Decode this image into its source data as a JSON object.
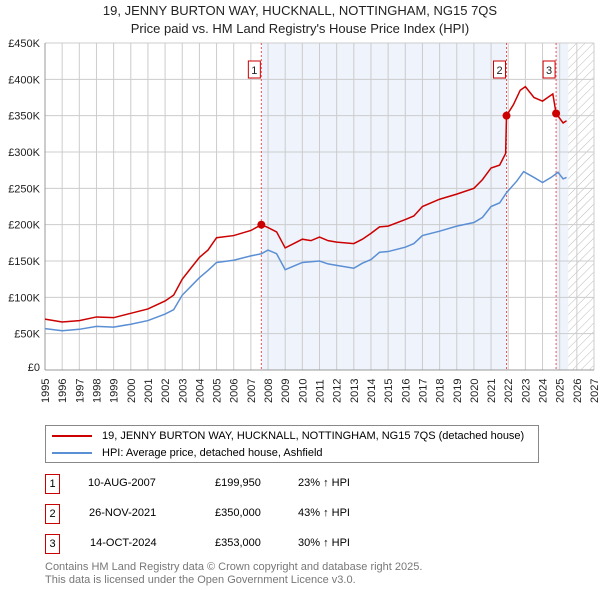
{
  "title": "19, JENNY BURTON WAY, HUCKNALL, NOTTINGHAM, NG15 7QS",
  "subtitle": "Price paid vs. HM Land Registry's House Price Index (HPI)",
  "chart_data": {
    "type": "line",
    "xlim": [
      1995,
      2027
    ],
    "ylim": [
      0,
      450000
    ],
    "yticks": [
      {
        "v": 0,
        "label": "£0"
      },
      {
        "v": 50000,
        "label": "£50K"
      },
      {
        "v": 100000,
        "label": "£100K"
      },
      {
        "v": 150000,
        "label": "£150K"
      },
      {
        "v": 200000,
        "label": "£200K"
      },
      {
        "v": 250000,
        "label": "£250K"
      },
      {
        "v": 300000,
        "label": "£300K"
      },
      {
        "v": 350000,
        "label": "£350K"
      },
      {
        "v": 400000,
        "label": "£400K"
      },
      {
        "v": 450000,
        "label": "£450K"
      }
    ],
    "xticks": [
      "1995",
      "1996",
      "1997",
      "1998",
      "1999",
      "2000",
      "2001",
      "2002",
      "2003",
      "2004",
      "2005",
      "2006",
      "2007",
      "2008",
      "2009",
      "2010",
      "2011",
      "2012",
      "2013",
      "2014",
      "2015",
      "2016",
      "2017",
      "2018",
      "2019",
      "2020",
      "2021",
      "2022",
      "2023",
      "2024",
      "2025",
      "2026",
      "2027"
    ],
    "shaded_ranges": [
      [
        2007.61,
        2021.9
      ],
      [
        2024.79,
        2025.5
      ]
    ],
    "forecast_from": 2025.5,
    "series": [
      {
        "name": "19, JENNY BURTON WAY, HUCKNALL, NOTTINGHAM, NG15 7QS (detached house)",
        "color": "#cc0000",
        "x": [
          1995,
          1996,
          1997,
          1998,
          1999,
          2000,
          2001,
          2002,
          2002.5,
          2003,
          2003.5,
          2004,
          2004.5,
          2005,
          2006,
          2007,
          2007.61,
          2008,
          2008.5,
          2009,
          2009.5,
          2010,
          2010.5,
          2011,
          2011.5,
          2012,
          2013,
          2013.5,
          2014,
          2014.5,
          2015,
          2016,
          2016.5,
          2017,
          2018,
          2019,
          2020,
          2020.5,
          2021,
          2021.5,
          2021.85,
          2021.9,
          2022.3,
          2022.7,
          2023,
          2023.5,
          2024,
          2024.6,
          2024.79,
          2025.2,
          2025.4
        ],
        "y": [
          70000,
          66000,
          68000,
          73000,
          72000,
          78000,
          84000,
          95000,
          103000,
          125000,
          140000,
          155000,
          165000,
          182000,
          185000,
          192000,
          199950,
          196000,
          190000,
          168000,
          174000,
          180000,
          178000,
          183000,
          178000,
          176000,
          174000,
          180000,
          188000,
          197000,
          198000,
          207000,
          212000,
          225000,
          235000,
          242000,
          250000,
          262000,
          278000,
          282000,
          298000,
          350000,
          365000,
          385000,
          390000,
          375000,
          370000,
          380000,
          353000,
          340000,
          343000
        ]
      },
      {
        "name": "HPI: Average price, detached house, Ashfield",
        "color": "#5b8fd4",
        "x": [
          1995,
          1996,
          1997,
          1998,
          1999,
          2000,
          2001,
          2002,
          2002.5,
          2003,
          2003.5,
          2004,
          2004.5,
          2005,
          2006,
          2007,
          2007.61,
          2008,
          2008.5,
          2009,
          2009.5,
          2010,
          2011,
          2011.5,
          2012,
          2013,
          2013.5,
          2014,
          2014.5,
          2015,
          2016,
          2016.5,
          2017,
          2018,
          2019,
          2020,
          2020.5,
          2021,
          2021.5,
          2021.9,
          2022.5,
          2022.9,
          2023.5,
          2024,
          2024.5,
          2024.9,
          2025.2,
          2025.4
        ],
        "y": [
          57000,
          54000,
          56000,
          60000,
          59000,
          63000,
          68000,
          77000,
          83000,
          103000,
          115000,
          127000,
          137000,
          148000,
          151000,
          157000,
          160000,
          165000,
          160000,
          138000,
          143000,
          148000,
          150000,
          146000,
          144000,
          140000,
          147000,
          152000,
          162000,
          163000,
          169000,
          174000,
          185000,
          191000,
          198000,
          203000,
          210000,
          225000,
          230000,
          244000,
          260000,
          273000,
          265000,
          258000,
          265000,
          272000,
          263000,
          265000
        ]
      }
    ],
    "sales": [
      {
        "label": "1",
        "x": 2007.61,
        "y": 199950
      },
      {
        "label": "2",
        "x": 2021.9,
        "y": 350000
      },
      {
        "label": "3",
        "x": 2024.79,
        "y": 353000
      }
    ]
  },
  "legend": {
    "red": "19, JENNY BURTON WAY, HUCKNALL, NOTTINGHAM, NG15 7QS (detached house)",
    "blue": "HPI: Average price, detached house, Ashfield"
  },
  "table": [
    {
      "num": "1",
      "date": "10-AUG-2007",
      "price": "£199,950",
      "hpi": "23% ↑ HPI"
    },
    {
      "num": "2",
      "date": "26-NOV-2021",
      "price": "£350,000",
      "hpi": "43% ↑ HPI"
    },
    {
      "num": "3",
      "date": "14-OCT-2024",
      "price": "£353,000",
      "hpi": "30% ↑ HPI"
    }
  ],
  "footer": {
    "line1": "Contains HM Land Registry data © Crown copyright and database right 2025.",
    "line2": "This data is licensed under the Open Government Licence v3.0."
  }
}
